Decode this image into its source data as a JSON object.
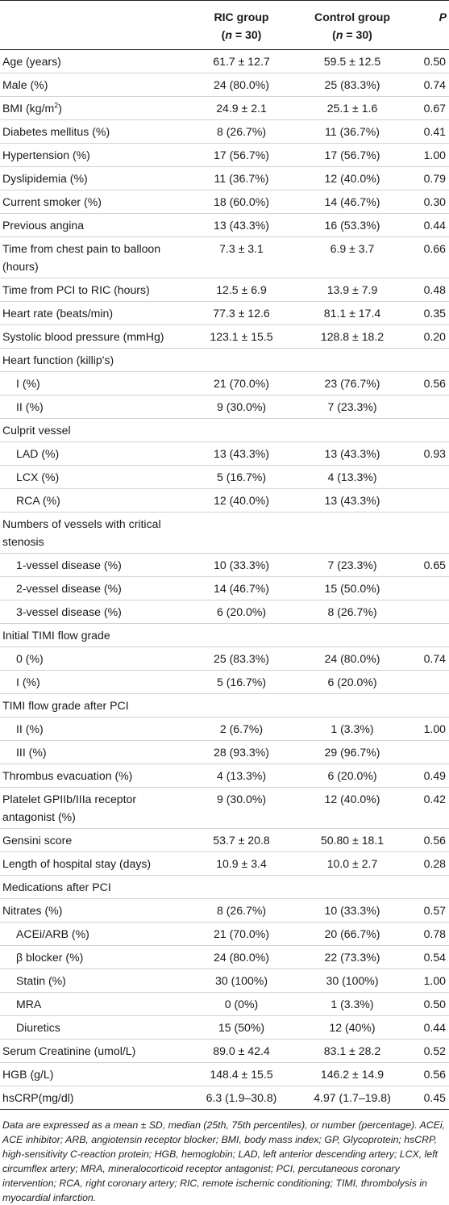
{
  "table": {
    "headers": {
      "col1": "",
      "col2_line1": "RIC group",
      "col2_line2_open": "(",
      "col2_line2_n": "n",
      "col2_line2_rest": " = 30)",
      "col3_line1": "Control group",
      "col3_line2_open": "(",
      "col3_line2_n": "n",
      "col3_line2_rest": " = 30)",
      "col4": "P"
    },
    "rows": [
      {
        "label": "Age (years)",
        "ric": "61.7 ± 12.7",
        "control": "59.5 ± 12.5",
        "p": "0.50"
      },
      {
        "label": "Male (%)",
        "ric": "24 (80.0%)",
        "control": "25 (83.3%)",
        "p": "0.74"
      },
      {
        "label": "BMI (kg/m",
        "label_sup": "2",
        "label_after": ")",
        "ric": "24.9 ± 2.1",
        "control": "25.1 ± 1.6",
        "p": "0.67"
      },
      {
        "label": "Diabetes mellitus (%)",
        "ric": "8 (26.7%)",
        "control": "11 (36.7%)",
        "p": "0.41"
      },
      {
        "label": "Hypertension (%)",
        "ric": "17 (56.7%)",
        "control": "17 (56.7%)",
        "p": "1.00"
      },
      {
        "label": "Dyslipidemia (%)",
        "ric": "11 (36.7%)",
        "control": "12 (40.0%)",
        "p": "0.79"
      },
      {
        "label": "Current smoker (%)",
        "ric": "18 (60.0%)",
        "control": "14 (46.7%)",
        "p": "0.30"
      },
      {
        "label": "Previous angina",
        "ric": "13 (43.3%)",
        "control": "16 (53.3%)",
        "p": "0.44"
      },
      {
        "label": "Time from chest pain to balloon (hours)",
        "ric": "7.3 ± 3.1",
        "control": "6.9 ± 3.7",
        "p": "0.66"
      },
      {
        "label": "Time from PCI to RIC (hours)",
        "ric": "12.5 ± 6.9",
        "control": "13.9 ± 7.9",
        "p": "0.48"
      },
      {
        "label": "Heart rate (beats/min)",
        "ric": "77.3 ± 12.6",
        "control": "81.1 ± 17.4",
        "p": "0.35"
      },
      {
        "label": "Systolic blood pressure (mmHg)",
        "ric": "123.1 ± 15.5",
        "control": "128.8 ± 18.2",
        "p": "0.20"
      },
      {
        "label": "Heart function (killip's)",
        "ric": "",
        "control": "",
        "p": ""
      },
      {
        "label": "I (%)",
        "ric": "21 (70.0%)",
        "control": "23 (76.7%)",
        "p": "0.56"
      },
      {
        "label": "II (%)",
        "ric": "9 (30.0%)",
        "control": "7 (23.3%)",
        "p": ""
      },
      {
        "label": "Culprit vessel",
        "ric": "",
        "control": "",
        "p": ""
      },
      {
        "label": "LAD (%)",
        "ric": "13 (43.3%)",
        "control": "13 (43.3%)",
        "p": "0.93"
      },
      {
        "label": "LCX (%)",
        "ric": "5 (16.7%)",
        "control": "4 (13.3%)",
        "p": ""
      },
      {
        "label": "RCA (%)",
        "ric": "12 (40.0%)",
        "control": "13 (43.3%)",
        "p": ""
      },
      {
        "label": "Numbers of vessels with critical stenosis",
        "ric": "",
        "control": "",
        "p": ""
      },
      {
        "label": "1-vessel disease (%)",
        "ric": "10 (33.3%)",
        "control": "7 (23.3%)",
        "p": "0.65"
      },
      {
        "label": "2-vessel disease (%)",
        "ric": "14 (46.7%)",
        "control": "15 (50.0%)",
        "p": ""
      },
      {
        "label": "3-vessel disease (%)",
        "ric": "6 (20.0%)",
        "control": "8 (26.7%)",
        "p": ""
      },
      {
        "label": "Initial TIMI flow grade",
        "ric": "",
        "control": "",
        "p": ""
      },
      {
        "label": "0 (%)",
        "ric": "25 (83.3%)",
        "control": "24 (80.0%)",
        "p": "0.74"
      },
      {
        "label": "I (%)",
        "ric": "5 (16.7%)",
        "control": "6 (20.0%)",
        "p": ""
      },
      {
        "label": "TIMI flow grade after PCI",
        "ric": "",
        "control": "",
        "p": ""
      },
      {
        "label": "II (%)",
        "ric": "2 (6.7%)",
        "control": "1 (3.3%)",
        "p": "1.00"
      },
      {
        "label": "III (%)",
        "ric": "28 (93.3%)",
        "control": "29 (96.7%)",
        "p": ""
      },
      {
        "label": "Thrombus evacuation (%)",
        "ric": "4 (13.3%)",
        "control": "6 (20.0%)",
        "p": "0.49"
      },
      {
        "label": "Platelet GPIIb/IIIa receptor antagonist (%)",
        "ric": "9 (30.0%)",
        "control": "12 (40.0%)",
        "p": "0.42"
      },
      {
        "label": "Gensini score",
        "ric": "53.7 ± 20.8",
        "control": "50.80 ± 18.1",
        "p": "0.56"
      },
      {
        "label": "Length of hospital stay (days)",
        "ric": "10.9 ± 3.4",
        "control": "10.0 ± 2.7",
        "p": "0.28"
      },
      {
        "label": "Medications after PCI",
        "ric": "",
        "control": "",
        "p": ""
      },
      {
        "label": "Nitrates (%)",
        "ric": "8 (26.7%)",
        "control": "10 (33.3%)",
        "p": "0.57"
      },
      {
        "label": "ACEi/ARB (%)",
        "ric": "21 (70.0%)",
        "control": "20 (66.7%)",
        "p": "0.78"
      },
      {
        "label": "β blocker (%)",
        "ric": "24 (80.0%)",
        "control": "22 (73.3%)",
        "p": "0.54"
      },
      {
        "label": "Statin (%)",
        "ric": "30 (100%)",
        "control": "30 (100%)",
        "p": "1.00"
      },
      {
        "label": "MRA",
        "ric": "0 (0%)",
        "control": "1 (3.3%)",
        "p": "0.50"
      },
      {
        "label": "Diuretics",
        "ric": "15 (50%)",
        "control": "12 (40%)",
        "p": "0.44"
      },
      {
        "label": "Serum Creatinine (umol/L)",
        "ric": "89.0 ± 42.4",
        "control": "83.1 ± 28.2",
        "p": "0.52"
      },
      {
        "label": "HGB (g/L)",
        "ric": "148.4 ± 15.5",
        "control": "146.2 ± 14.9",
        "p": "0.56"
      },
      {
        "label": "hsCRP(mg/dl)",
        "ric": "6.3 (1.9–30.8)",
        "control": "4.97 (1.7–19.8)",
        "p": "0.45"
      }
    ],
    "footnote": "Data are expressed as a mean ± SD, median (25th, 75th percentiles), or number (percentage). ACEi, ACE inhibitor; ARB, angiotensin receptor blocker; BMI, body mass index; GP, Glycoprotein; hsCRP, high-sensitivity C-reaction protein; HGB, hemoglobin; LAD, left anterior descending artery; LCX, left circumflex artery; MRA, mineralocorticoid receptor antagonist; PCI, percutaneous coronary intervention; RCA, right coronary artery; RIC, remote ischemic conditioning; TIMI, thrombolysis in myocardial infarction."
  }
}
